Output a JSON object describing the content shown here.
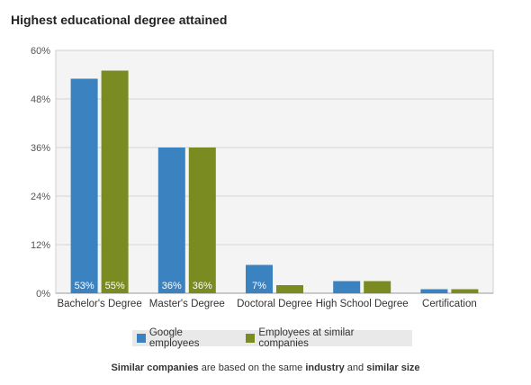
{
  "chart_data": {
    "type": "bar",
    "title": "Highest educational degree attained",
    "categories": [
      "Bachelor's Degree",
      "Master's Degree",
      "Doctoral Degree",
      "High School Degree",
      "Certification"
    ],
    "series": [
      {
        "name": "Google employees",
        "values": [
          53,
          36,
          7,
          3,
          1
        ],
        "color": "#3b82c0",
        "data_labels": [
          "53%",
          "36%",
          "7%",
          "",
          ""
        ]
      },
      {
        "name": "Employees at similar companies",
        "values": [
          55,
          36,
          2,
          3,
          1
        ],
        "color": "#7a8b22",
        "data_labels": [
          "55%",
          "36%",
          "",
          "",
          ""
        ]
      }
    ],
    "yticks": [
      "0%",
      "12%",
      "24%",
      "36%",
      "48%",
      "60%"
    ],
    "ylim": [
      0,
      60
    ],
    "grid": true,
    "legend_position": "bottom"
  },
  "footnote": {
    "part1": "Similar companies",
    "part2": " are based on the same ",
    "part3": "industry",
    "part4": " and ",
    "part5": "similar size"
  }
}
